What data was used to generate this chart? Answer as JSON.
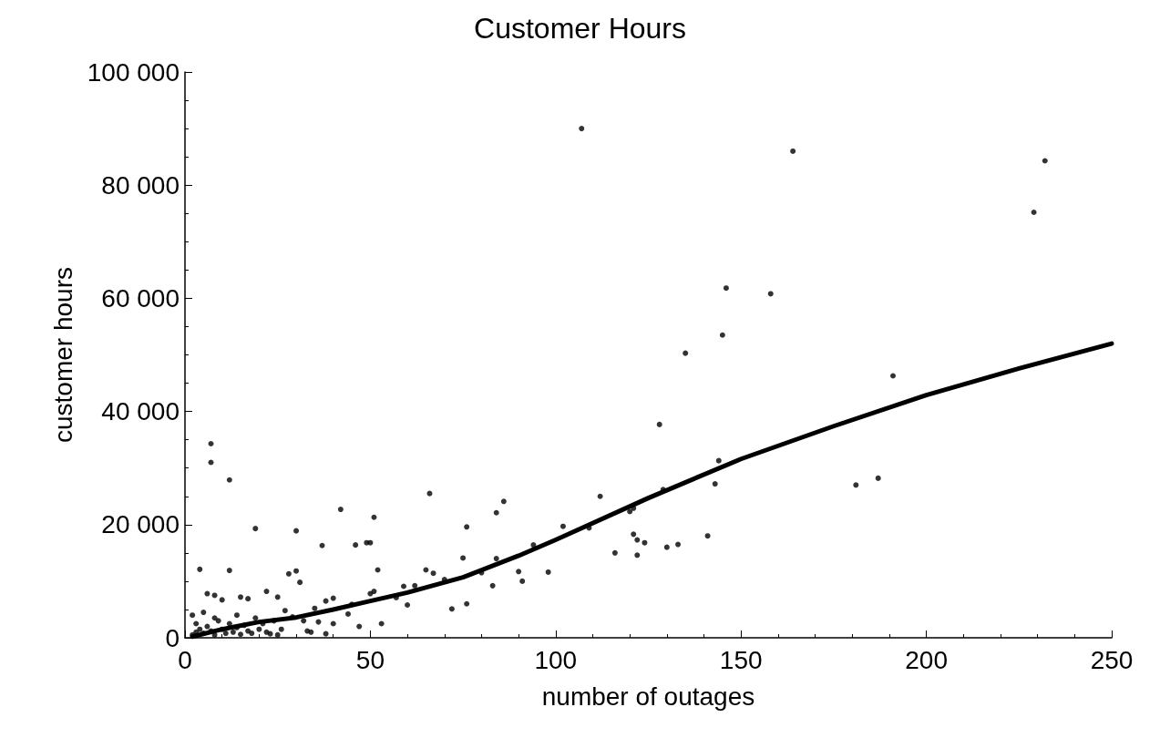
{
  "chart_data": {
    "type": "scatter",
    "title": "Customer Hours",
    "xlabel": "number of outages",
    "ylabel": "customer hours",
    "xlim": [
      0,
      250
    ],
    "xticks": [
      0,
      50,
      100,
      150,
      200,
      250
    ],
    "ylim": [
      0,
      100000
    ],
    "yticks": [
      {
        "value": 0,
        "label": "0"
      },
      {
        "value": 20000,
        "label": "20 000"
      },
      {
        "value": 40000,
        "label": "40 000"
      },
      {
        "value": 60000,
        "label": "60 000"
      },
      {
        "value": 80000,
        "label": "80 000"
      },
      {
        "value": 100000,
        "label": "100 000"
      }
    ],
    "grid": false,
    "marker": "circle",
    "series": [
      {
        "color": "#000000",
        "x": [
          107,
          164,
          232,
          229,
          146,
          158,
          145,
          135,
          191,
          128,
          144,
          143,
          181,
          187,
          129,
          112,
          141,
          133,
          130,
          124,
          122,
          121,
          122,
          120,
          121,
          109,
          102,
          116,
          98,
          94,
          90,
          91,
          86,
          84,
          84,
          83,
          80,
          76,
          75,
          76,
          72,
          66,
          67,
          65,
          70,
          62,
          60,
          59,
          57,
          51,
          50,
          49,
          46,
          42,
          37,
          52,
          51,
          50,
          53,
          47,
          45,
          40,
          44,
          30,
          19,
          12,
          7,
          7,
          4,
          12,
          28,
          30,
          31,
          22,
          6,
          8,
          10,
          15,
          17,
          25,
          35,
          38,
          2,
          3,
          4,
          5,
          6,
          7,
          8,
          9,
          10,
          11,
          12,
          13,
          14,
          15,
          16,
          17,
          18,
          19,
          20,
          21,
          22,
          23,
          2,
          3,
          5,
          8,
          14,
          24,
          26,
          27,
          29,
          32,
          33,
          34,
          36,
          38,
          40,
          25
        ],
        "values": [
          90000,
          86000,
          84300,
          75200,
          61800,
          60800,
          53500,
          50300,
          46300,
          37700,
          31300,
          27200,
          27000,
          28200,
          26200,
          25000,
          18000,
          16500,
          16000,
          16800,
          17300,
          18300,
          14600,
          22300,
          22900,
          19400,
          19700,
          15000,
          11600,
          16400,
          11700,
          10000,
          24100,
          22100,
          14000,
          9200,
          11500,
          19600,
          14100,
          6000,
          5100,
          25500,
          11400,
          12000,
          10300,
          9200,
          5800,
          9100,
          7100,
          21300,
          16800,
          16800,
          16400,
          22700,
          16300,
          12000,
          8200,
          7800,
          2500,
          2000,
          5900,
          7000,
          4200,
          18900,
          19300,
          27900,
          34300,
          31000,
          12100,
          11900,
          11300,
          11800,
          9800,
          8200,
          7800,
          7500,
          6700,
          7200,
          6900,
          7200,
          5200,
          6500,
          500,
          1000,
          1500,
          800,
          2000,
          1200,
          500,
          3000,
          1500,
          800,
          2500,
          1000,
          1800,
          600,
          2200,
          1200,
          800,
          3500,
          1500,
          2500,
          1000,
          700,
          4000,
          2500,
          4500,
          3500,
          4000,
          3000,
          1500,
          4800,
          3700,
          3000,
          1200,
          1000,
          2800,
          700,
          2500,
          500
        ]
      },
      {
        "type": "line",
        "color": "#000000",
        "marker": "none",
        "line_style": "solid",
        "x": [
          2,
          10,
          20,
          30,
          40,
          50,
          60,
          75,
          90,
          100,
          125,
          150,
          175,
          200,
          225,
          250
        ],
        "values": [
          200,
          1500,
          2800,
          3600,
          5000,
          6500,
          8000,
          10700,
          14500,
          17300,
          24700,
          31600,
          37400,
          42900,
          47600,
          52000
        ]
      }
    ]
  }
}
